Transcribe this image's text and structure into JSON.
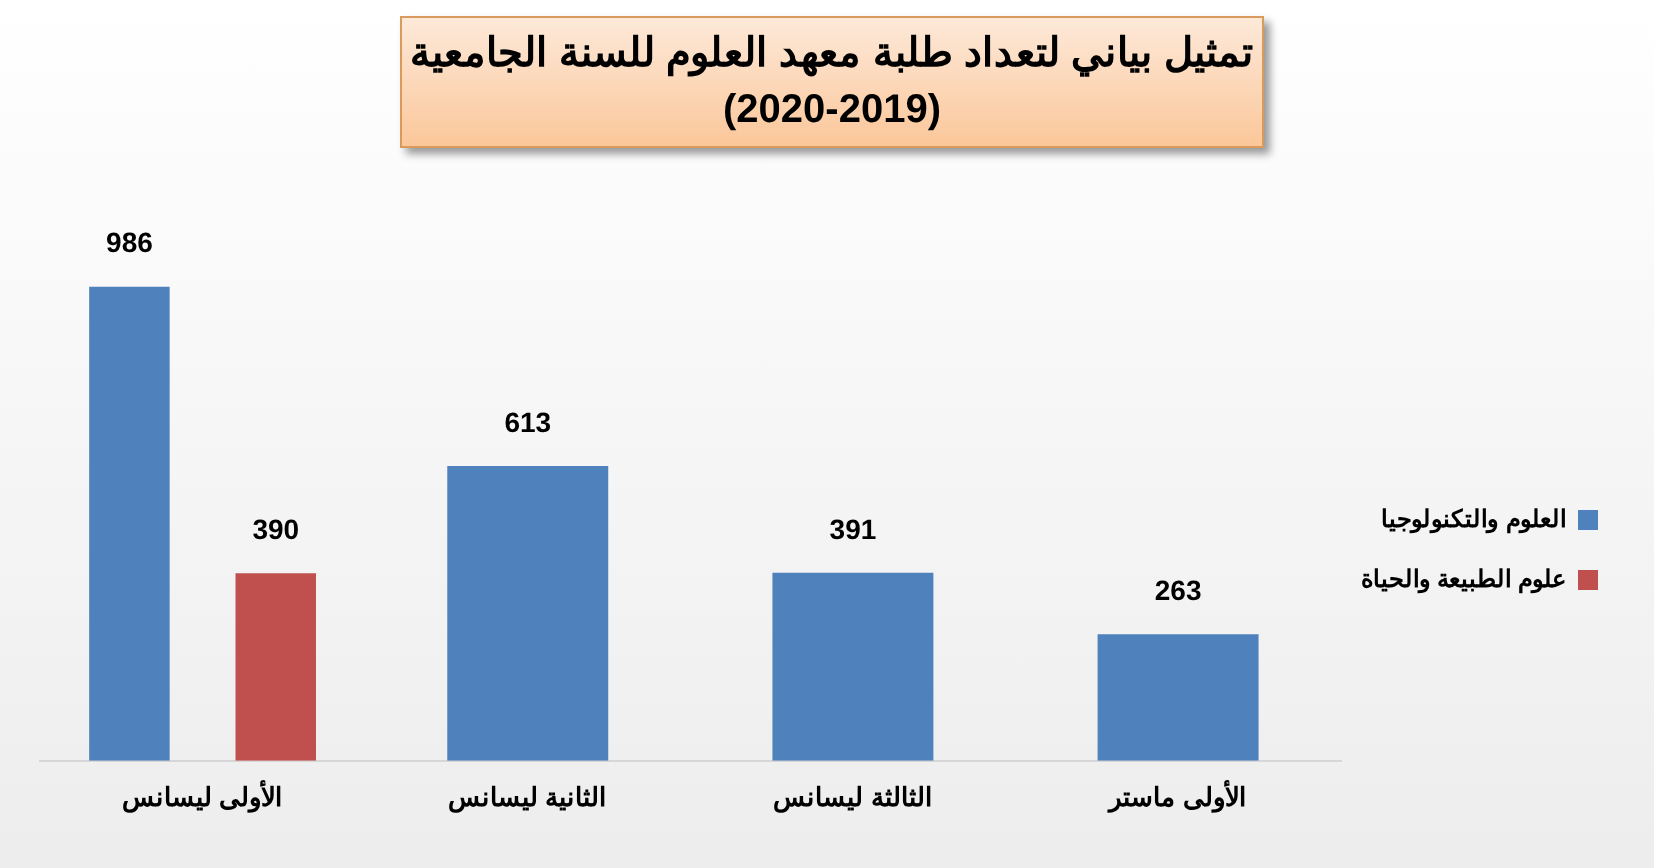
{
  "chart_data": {
    "type": "bar",
    "title": "تمثيل بياني لتعداد طلبة معهد العلوم للسنة الجامعية",
    "subtitle": "(2020-2019)",
    "categories": [
      "الأولى ليسانس",
      "الثانية ليسانس",
      "الثالثة ليسانس",
      "الأولى ماستر"
    ],
    "series": [
      {
        "name": "العلوم والتكنولوجيا",
        "color": "#4f81bd",
        "values": [
          986,
          613,
          391,
          263
        ]
      },
      {
        "name": "علوم الطبيعة والحياة",
        "color": "#c0504d",
        "values": [
          390,
          null,
          null,
          null
        ]
      }
    ],
    "data_labels": true,
    "grid": false,
    "legend": "right"
  }
}
